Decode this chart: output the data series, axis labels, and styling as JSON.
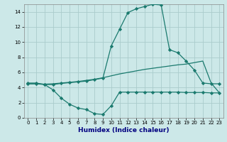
{
  "xlabel": "Humidex (Indice chaleur)",
  "bg_color": "#cce8e8",
  "grid_color": "#aacccc",
  "line_color": "#1a7a6e",
  "xlim": [
    -0.5,
    23.5
  ],
  "ylim": [
    0,
    15
  ],
  "xticks": [
    0,
    1,
    2,
    3,
    4,
    5,
    6,
    7,
    8,
    9,
    10,
    11,
    12,
    13,
    14,
    15,
    16,
    17,
    18,
    19,
    20,
    21,
    22,
    23
  ],
  "yticks": [
    0,
    2,
    4,
    6,
    8,
    10,
    12,
    14
  ],
  "line1_x": [
    0,
    1,
    2,
    3,
    4,
    5,
    6,
    7,
    8,
    9,
    10,
    11,
    12,
    13,
    14,
    15,
    16,
    17,
    18,
    19,
    20,
    21,
    22,
    23
  ],
  "line1_y": [
    4.6,
    4.6,
    4.4,
    4.4,
    4.55,
    4.65,
    4.75,
    4.85,
    5.05,
    5.25,
    9.5,
    11.7,
    13.9,
    14.4,
    14.7,
    15.0,
    14.9,
    9.0,
    8.6,
    7.5,
    6.3,
    4.6,
    4.5,
    4.5
  ],
  "line2_x": [
    0,
    1,
    2,
    3,
    4,
    5,
    6,
    7,
    8,
    9,
    10,
    11,
    12,
    13,
    14,
    15,
    16,
    17,
    18,
    19,
    20,
    21,
    22,
    23
  ],
  "line2_y": [
    4.5,
    4.5,
    4.45,
    4.5,
    4.6,
    4.7,
    4.8,
    4.95,
    5.1,
    5.3,
    5.55,
    5.8,
    6.0,
    6.2,
    6.4,
    6.55,
    6.7,
    6.85,
    7.0,
    7.1,
    7.3,
    7.5,
    4.6,
    3.3
  ],
  "line3_x": [
    0,
    1,
    2,
    3,
    4,
    5,
    6,
    7,
    8,
    9,
    10,
    11,
    12,
    13,
    14,
    15,
    16,
    17,
    18,
    19,
    20,
    21,
    22,
    23
  ],
  "line3_y": [
    4.5,
    4.5,
    4.4,
    3.7,
    2.6,
    1.8,
    1.3,
    1.1,
    0.55,
    0.45,
    1.6,
    3.4,
    3.4,
    3.4,
    3.4,
    3.4,
    3.4,
    3.4,
    3.4,
    3.35,
    3.35,
    3.35,
    3.3,
    3.3
  ],
  "marker": "D",
  "marker_size": 2.2,
  "linewidth": 0.9
}
